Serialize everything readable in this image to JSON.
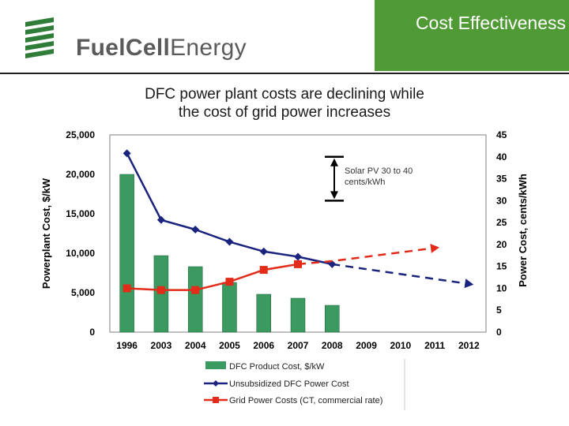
{
  "header": {
    "title": "Cost Effectiveness",
    "logo_bold": "FuelCell",
    "logo_thin": "Energy",
    "colors": {
      "green": "#4f9a35",
      "logo_gray": "#5a5a5a"
    }
  },
  "subtitle": {
    "line1": "DFC power plant costs are declining while",
    "line2": "the cost of grid power increases"
  },
  "chart_data": {
    "type": "bar",
    "categories": [
      "1996",
      "2003",
      "2004",
      "2005",
      "2006",
      "2007",
      "2008",
      "2009",
      "2010",
      "2011",
      "2012"
    ],
    "ylabel": "Powerplant Cost, $/kW",
    "y2label": "Power Cost, cents/kWh",
    "ylim": [
      0,
      25000
    ],
    "y2lim": [
      0,
      45
    ],
    "yticks": [
      "0",
      "5,000",
      "10,000",
      "15,000",
      "20,000",
      "25,000"
    ],
    "y2ticks": [
      "0",
      "5",
      "10",
      "15",
      "20",
      "25",
      "30",
      "35",
      "40",
      "45"
    ],
    "series": [
      {
        "name": "DFC Product Cost, $/kW",
        "kind": "bar",
        "axis": "left",
        "color": "#3a9a60",
        "values": [
          20000,
          9700,
          8300,
          6300,
          4800,
          4300,
          3400,
          null,
          null,
          null,
          null
        ]
      },
      {
        "name": "Unsubsidized DFC Power Cost",
        "kind": "line",
        "axis": "right",
        "color": "#1a237e",
        "marker": "diamond",
        "values": [
          40.8,
          25.6,
          23.4,
          20.6,
          18.4,
          17.2,
          15.5,
          null,
          null,
          null,
          null
        ],
        "projection": [
          15.5,
          null,
          null,
          null,
          11.0
        ]
      },
      {
        "name": "Grid Power Costs (CT, commercial rate)",
        "kind": "line",
        "axis": "right",
        "color": "#e32b1a",
        "marker": "square",
        "values": [
          10.0,
          9.6,
          9.6,
          11.5,
          14.2,
          15.5,
          null,
          null,
          null,
          null,
          null
        ],
        "projection": [
          15.5,
          16.2,
          null,
          null,
          19.2
        ]
      }
    ],
    "annotation": {
      "line1": "Solar PV 30 to 40",
      "line2": "cents/kWh",
      "range": [
        30,
        40
      ]
    }
  }
}
